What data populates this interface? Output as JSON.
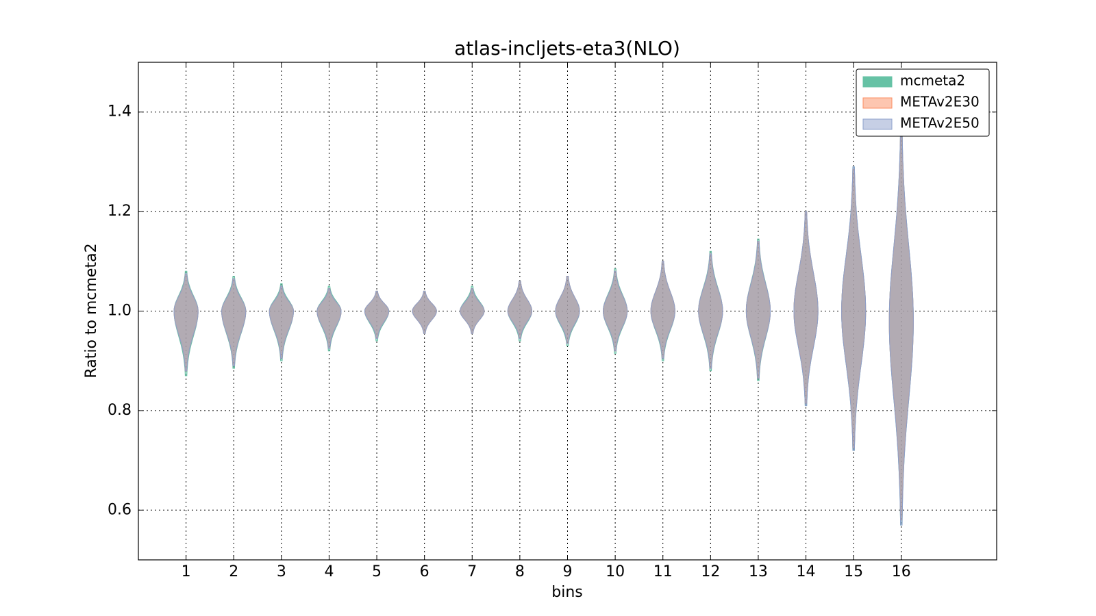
{
  "chart_data": {
    "type": "violin",
    "title": "atlas-incljets-eta3(NLO)",
    "x_label": "bins",
    "y_label": "Ratio to mcmeta2",
    "xlim": [
      0,
      18
    ],
    "xticks": [
      1,
      2,
      3,
      4,
      5,
      6,
      7,
      8,
      9,
      10,
      11,
      12,
      13,
      14,
      15,
      16
    ],
    "ylim": [
      0.5,
      1.5
    ],
    "yticks": [
      {
        "value": 0.6,
        "label": "0.6"
      },
      {
        "value": 0.8,
        "label": "0.8"
      },
      {
        "value": 1.0,
        "label": "1.0"
      },
      {
        "value": 1.2,
        "label": "1.2"
      },
      {
        "value": 1.4,
        "label": "1.4"
      }
    ],
    "grid": true,
    "legend": "upper right",
    "series": [
      {
        "name": "mcmeta2",
        "color": "#66c2a5",
        "min": [
          0.87,
          0.885,
          0.9,
          0.92,
          0.94,
          0.955,
          0.955,
          0.94,
          0.93,
          0.915,
          0.9,
          0.88,
          0.86,
          0.81,
          0.72,
          0.57
        ],
        "mode": [
          1.0,
          1.0,
          1.0,
          1.0,
          1.0,
          1.0,
          1.0,
          1.0,
          1.0,
          1.0,
          1.0,
          1.0,
          1.0,
          1.0,
          1.0,
          0.98
        ],
        "max": [
          1.08,
          1.07,
          1.055,
          1.05,
          1.04,
          1.04,
          1.05,
          1.06,
          1.07,
          1.085,
          1.1,
          1.12,
          1.145,
          1.2,
          1.29,
          1.37
        ]
      },
      {
        "name": "METAv2E30",
        "color": "#fc8d62",
        "min": [
          0.88,
          0.89,
          0.905,
          0.925,
          0.945,
          0.955,
          0.955,
          0.945,
          0.935,
          0.92,
          0.905,
          0.885,
          0.865,
          0.815,
          0.725,
          0.58
        ],
        "mode": [
          1.0,
          1.0,
          1.0,
          1.0,
          1.0,
          1.0,
          1.0,
          1.0,
          1.0,
          1.0,
          1.0,
          1.0,
          1.0,
          1.0,
          1.0,
          0.98
        ],
        "max": [
          1.075,
          1.065,
          1.05,
          1.045,
          1.04,
          1.04,
          1.045,
          1.06,
          1.07,
          1.08,
          1.1,
          1.115,
          1.14,
          1.2,
          1.285,
          1.365
        ]
      },
      {
        "name": "METAv2E50",
        "color": "#8da0cb",
        "min": [
          0.88,
          0.89,
          0.905,
          0.925,
          0.945,
          0.955,
          0.955,
          0.945,
          0.935,
          0.92,
          0.905,
          0.885,
          0.865,
          0.81,
          0.72,
          0.57
        ],
        "mode": [
          1.0,
          1.0,
          1.0,
          1.0,
          1.0,
          1.0,
          1.0,
          1.0,
          1.0,
          1.0,
          1.0,
          1.0,
          1.0,
          1.0,
          1.0,
          0.98
        ],
        "max": [
          1.075,
          1.065,
          1.05,
          1.045,
          1.04,
          1.04,
          1.045,
          1.06,
          1.07,
          1.08,
          1.1,
          1.115,
          1.14,
          1.2,
          1.29,
          1.37
        ]
      }
    ]
  }
}
